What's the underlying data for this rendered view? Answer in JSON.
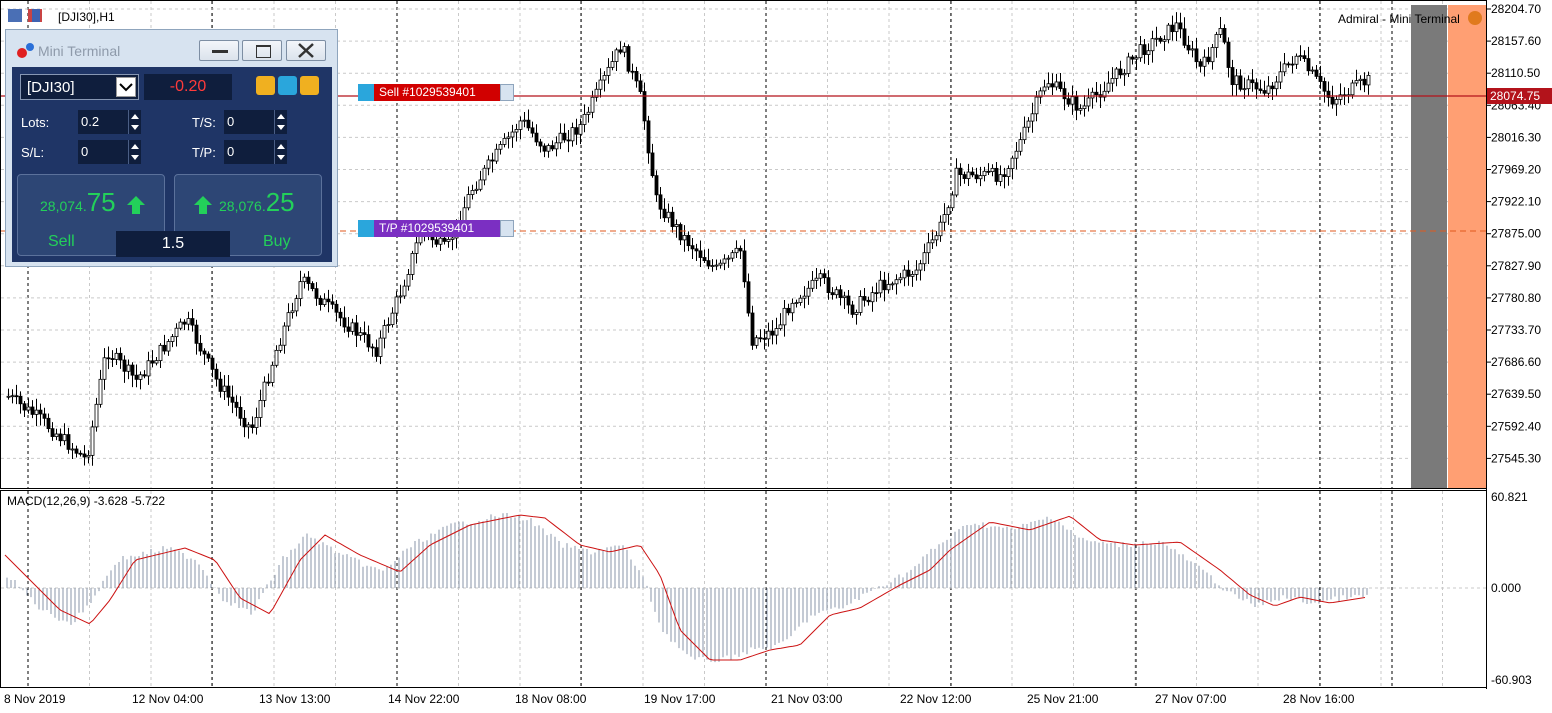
{
  "chart": {
    "header": "[DJI30],H1",
    "indicator_label": "Admiral - Mini Terminal",
    "price_axis": [
      "28204.70",
      "28157.60",
      "28110.50",
      "28063.40",
      "28016.30",
      "27969.20",
      "27922.10",
      "27875.00",
      "27827.90",
      "27780.80",
      "27733.70",
      "27686.60",
      "27639.50",
      "27592.40",
      "27545.30"
    ],
    "current_price_label": "28074.75",
    "macd_label": "MACD(12,26,9) -3.628 -5.722",
    "macd_axis": [
      "60.821",
      "0.000",
      "-60.903"
    ],
    "time_axis": [
      "8 Nov 2019",
      "12 Nov 04:00",
      "13 Nov 13:00",
      "14 Nov 22:00",
      "18 Nov 08:00",
      "19 Nov 17:00",
      "21 Nov 03:00",
      "22 Nov 12:00",
      "25 Nov 21:00",
      "27 Nov 07:00",
      "28 Nov 16:00"
    ],
    "colors": {
      "sell_line": "#b3131b",
      "tp_line": "#e05a1e",
      "macd_signal": "#cc1111",
      "macd_hist": "#8a96a8",
      "shade_dark": "#7a7a7a",
      "shade_orange": "#ff9f73"
    }
  },
  "orders": {
    "sell_tag": "Sell #1029539401",
    "tp_tag": "T/P #1029539401"
  },
  "terminal": {
    "title": "Mini Terminal",
    "symbol": "[DJI30]",
    "profit": "-0.20",
    "lots_label": "Lots:",
    "lots_value": "0.2",
    "ts_label": "T/S:",
    "ts_value": "0",
    "sl_label": "S/L:",
    "sl_value": "0",
    "tp_label": "T/P:",
    "tp_value": "0",
    "sell_price_main": "28,074.",
    "sell_price_big": "75",
    "buy_price_main": "28,076.",
    "buy_price_big": "25",
    "sell_label": "Sell",
    "buy_label": "Buy",
    "volume": "1.5"
  }
}
